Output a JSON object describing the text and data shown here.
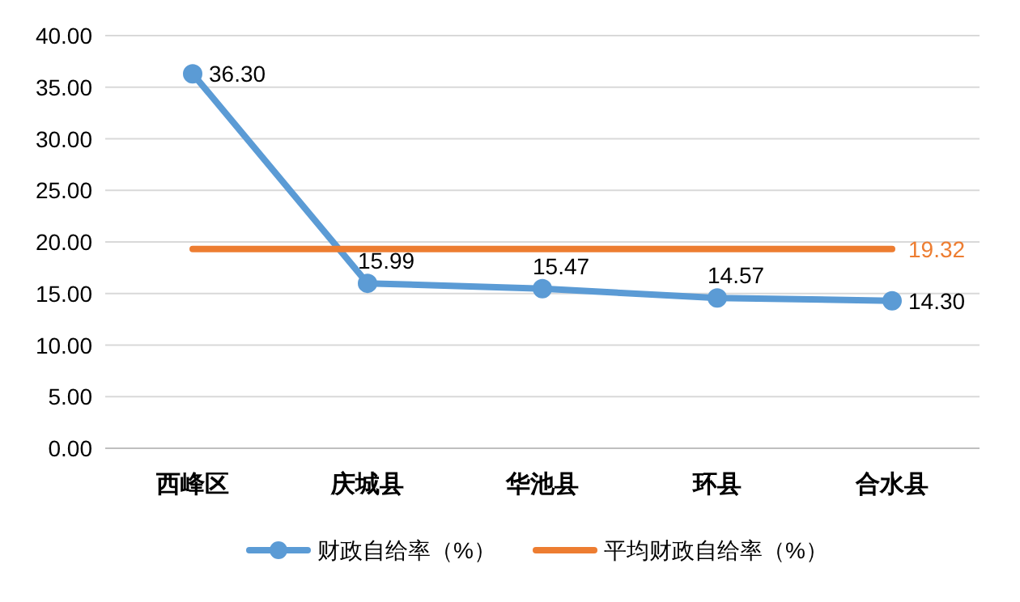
{
  "chart_data": {
    "type": "line",
    "categories": [
      "西峰区",
      "庆城县",
      "华池县",
      "环县",
      "合水县"
    ],
    "ylim": [
      0,
      40
    ],
    "yticks": [
      {
        "value": 0,
        "label": "0.00"
      },
      {
        "value": 5,
        "label": "5.00"
      },
      {
        "value": 10,
        "label": "10.00"
      },
      {
        "value": 15,
        "label": "15.00"
      },
      {
        "value": 20,
        "label": "20.00"
      },
      {
        "value": 25,
        "label": "25.00"
      },
      {
        "value": 30,
        "label": "30.00"
      },
      {
        "value": 35,
        "label": "35.00"
      },
      {
        "value": 40,
        "label": "40.00"
      }
    ],
    "grid": "y",
    "legend": "bottom",
    "line_style": "solid",
    "series": [
      {
        "name": "财政自给率（%）",
        "color": "#5b9bd5",
        "marker": "circle",
        "values": [
          36.3,
          15.99,
          15.47,
          14.57,
          14.3
        ],
        "value_labels": [
          "36.30",
          "15.99",
          "15.47",
          "14.57",
          "14.30"
        ]
      },
      {
        "name": "平均财政自给率（%）",
        "color": "#ed7d31",
        "marker": "none",
        "values": [
          19.32,
          19.32,
          19.32,
          19.32,
          19.32
        ],
        "value_labels": [
          null,
          null,
          null,
          null,
          "19.32"
        ]
      }
    ]
  }
}
